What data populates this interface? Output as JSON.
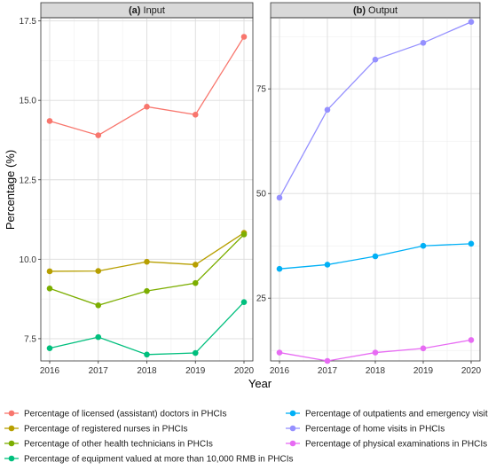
{
  "chart_data": {
    "type": "line",
    "xlabel": "Year",
    "ylabel": "Percentage (%)",
    "grid": true,
    "legend_position": "bottom",
    "panels": [
      {
        "strip_prefix": "(a)",
        "strip_title": "Input",
        "x": [
          2016,
          2017,
          2018,
          2019,
          2020
        ],
        "ylim": [
          6.8,
          17.6
        ],
        "yticks": [
          7.5,
          10.0,
          12.5,
          15.0,
          17.5
        ],
        "ytick_labels": [
          "7.5",
          "10.0",
          "12.5",
          "15.0",
          "17.5"
        ],
        "series": [
          {
            "name": "Percentage of licensed (assistant) doctors in PHCIs",
            "color": "#F8766D",
            "values": [
              14.35,
              13.9,
              14.8,
              14.55,
              17.0
            ]
          },
          {
            "name": "Percentage of registered nurses in PHCIs",
            "color": "#B79F00",
            "values": [
              9.62,
              9.63,
              9.92,
              9.83,
              10.83
            ]
          },
          {
            "name": "Percentage of other health technicians in PHCIs",
            "color": "#7CAE00",
            "values": [
              9.08,
              8.55,
              9.0,
              9.25,
              10.78
            ]
          },
          {
            "name": "Percentage of equipment valued at more than 10,000 RMB in PHCIs",
            "color": "#00BF7D",
            "values": [
              7.2,
              7.55,
              7.0,
              7.05,
              8.65
            ]
          }
        ]
      },
      {
        "strip_prefix": "(b)",
        "strip_title": "Output",
        "x": [
          2016,
          2017,
          2018,
          2019,
          2020
        ],
        "ylim": [
          10,
          92
        ],
        "yticks": [
          25,
          50,
          75
        ],
        "ytick_labels": [
          "25",
          "50",
          "75"
        ],
        "series": [
          {
            "name": "Percentage of outpatients and emergency visits",
            "color": "#00B0F6",
            "values": [
              32,
              33,
              35,
              37.5,
              38
            ]
          },
          {
            "name": "Percentage of home visits in PHCIs",
            "color": "#9590FF",
            "values": [
              49,
              70,
              82,
              86,
              91
            ]
          },
          {
            "name": "Percentage of physical examinations in PHCIs",
            "color": "#E76BF3",
            "values": [
              12,
              10,
              12,
              13,
              15
            ]
          }
        ]
      }
    ]
  }
}
